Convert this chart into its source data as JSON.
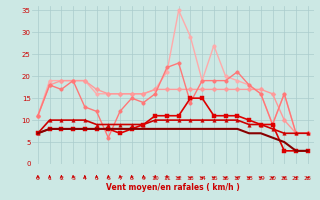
{
  "xlabel": "Vent moyen/en rafales ( km/h )",
  "background_color": "#cce8e4",
  "grid_color": "#aacccc",
  "x": [
    0,
    1,
    2,
    3,
    4,
    5,
    6,
    7,
    8,
    9,
    10,
    11,
    12,
    13,
    14,
    15,
    16,
    17,
    18,
    19,
    20,
    21,
    22,
    23
  ],
  "series": [
    {
      "label": "gust_light_pink",
      "y": [
        11,
        19,
        19,
        19,
        19,
        16,
        16,
        16,
        16,
        16,
        17,
        21,
        35,
        29,
        19,
        27,
        20,
        19,
        18,
        16,
        9,
        16,
        7,
        7
      ],
      "color": "#ffaaaa",
      "marker": "o",
      "lw": 1.0,
      "ms": 2.5
    },
    {
      "label": "mean_pink",
      "y": [
        11,
        18,
        19,
        19,
        19,
        17,
        16,
        16,
        16,
        16,
        17,
        17,
        17,
        17,
        17,
        17,
        17,
        17,
        17,
        17,
        16,
        10,
        7,
        7
      ],
      "color": "#ff9999",
      "marker": "D",
      "lw": 1.0,
      "ms": 2.5
    },
    {
      "label": "medium_pink",
      "y": [
        11,
        18,
        17,
        19,
        13,
        12,
        6,
        12,
        15,
        14,
        16,
        22,
        23,
        14,
        19,
        19,
        19,
        21,
        18,
        16,
        9,
        16,
        7,
        7
      ],
      "color": "#ff7777",
      "marker": "o",
      "lw": 1.0,
      "ms": 2.5
    },
    {
      "label": "dark_red_flat",
      "y": [
        7,
        10,
        10,
        10,
        10,
        9,
        9,
        9,
        9,
        9,
        10,
        10,
        10,
        10,
        10,
        10,
        10,
        10,
        9,
        9,
        8,
        7,
        7,
        7
      ],
      "color": "#cc0000",
      "marker": "^",
      "lw": 1.2,
      "ms": 2.5
    },
    {
      "label": "red_with_sq",
      "y": [
        7,
        8,
        8,
        8,
        8,
        8,
        8,
        7,
        8,
        9,
        11,
        11,
        11,
        15,
        15,
        11,
        11,
        11,
        10,
        9,
        9,
        3,
        3,
        3
      ],
      "color": "#dd0000",
      "marker": "s",
      "lw": 1.2,
      "ms": 2.5
    },
    {
      "label": "dark_line",
      "y": [
        7,
        8,
        8,
        8,
        8,
        8,
        8,
        8,
        8,
        8,
        8,
        8,
        8,
        8,
        8,
        8,
        8,
        8,
        7,
        7,
        6,
        5,
        3,
        3
      ],
      "color": "#880000",
      "marker": null,
      "lw": 1.5,
      "ms": 0
    }
  ],
  "arrow_angles": [
    0,
    0,
    0,
    0,
    0,
    0,
    0,
    0,
    0,
    0,
    0,
    0,
    45,
    45,
    45,
    45,
    45,
    45,
    45,
    45,
    45,
    45,
    45,
    45
  ],
  "ylim": [
    0,
    36
  ],
  "yticks": [
    0,
    5,
    10,
    15,
    20,
    25,
    30,
    35
  ],
  "xticks": [
    0,
    1,
    2,
    3,
    4,
    5,
    6,
    7,
    8,
    9,
    10,
    11,
    12,
    13,
    14,
    15,
    16,
    17,
    18,
    19,
    20,
    21,
    22,
    23
  ]
}
